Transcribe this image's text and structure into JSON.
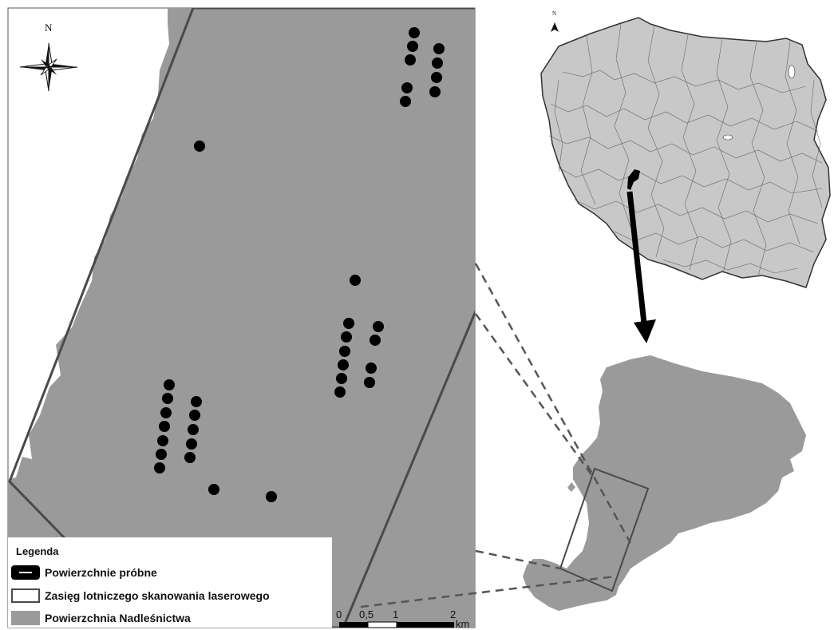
{
  "legend": {
    "title": "Legenda",
    "items": [
      {
        "label": "Powierzchnie próbne",
        "symbol": "black-rounded-bar-icon"
      },
      {
        "label": "Zasięg lotniczego skanowania laserowego",
        "symbol": "outlined-rectangle-icon"
      },
      {
        "label": "Powierzchnia Nadleśnictwa",
        "symbol": "gray-fill-icon"
      }
    ]
  },
  "scale_bar": {
    "ticks": [
      "0",
      "0,5",
      "1",
      "2"
    ],
    "unit": "km"
  },
  "north_arrow": {
    "main_label": "N",
    "inset_label": "N"
  },
  "sample_plot_count": 35,
  "colors": {
    "forest_area": "#9a9a9a",
    "poland_fill": "#c8c8c8",
    "boundary": "#4a4a4a",
    "plot": "#000000",
    "background": "#ffffff"
  }
}
